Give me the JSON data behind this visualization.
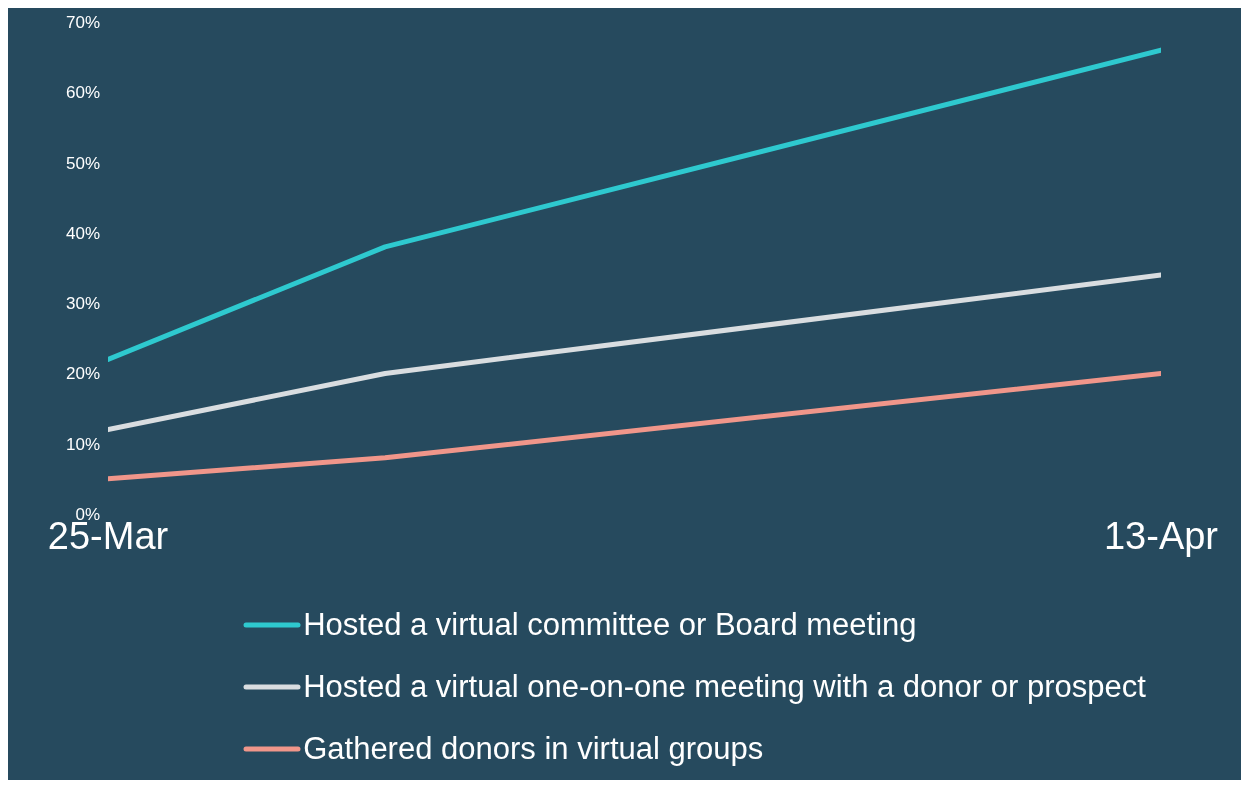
{
  "chart_data": {
    "type": "line",
    "x": [
      "--03-25",
      "--03-30",
      "--04-13"
    ],
    "xlim": [
      "--03-25",
      "--04-13"
    ],
    "xticks": [
      {
        "value": "--03-25",
        "label": "25-Mar"
      },
      {
        "value": "--04-13",
        "label": "13-Apr"
      }
    ],
    "ylim": [
      0,
      70
    ],
    "yticks": [
      {
        "value": 0,
        "label": "0%"
      },
      {
        "value": 10,
        "label": "10%"
      },
      {
        "value": 20,
        "label": "20%"
      },
      {
        "value": 30,
        "label": "30%"
      },
      {
        "value": 40,
        "label": "40%"
      },
      {
        "value": 50,
        "label": "50%"
      },
      {
        "value": 60,
        "label": "60%"
      },
      {
        "value": 70,
        "label": "70%"
      }
    ],
    "series": [
      {
        "name": "Hosted a virtual committee or Board meeting",
        "color": "#2ec9cf",
        "values": [
          22,
          38,
          66
        ]
      },
      {
        "name": "Hosted a virtual one-on-one meeting with a donor or prospect",
        "color": "#d9dde0",
        "values": [
          12,
          20,
          34
        ]
      },
      {
        "name": "Gathered donors in virtual groups",
        "color": "#f0968a",
        "values": [
          5,
          8,
          20
        ]
      }
    ],
    "legend": "bottom"
  }
}
